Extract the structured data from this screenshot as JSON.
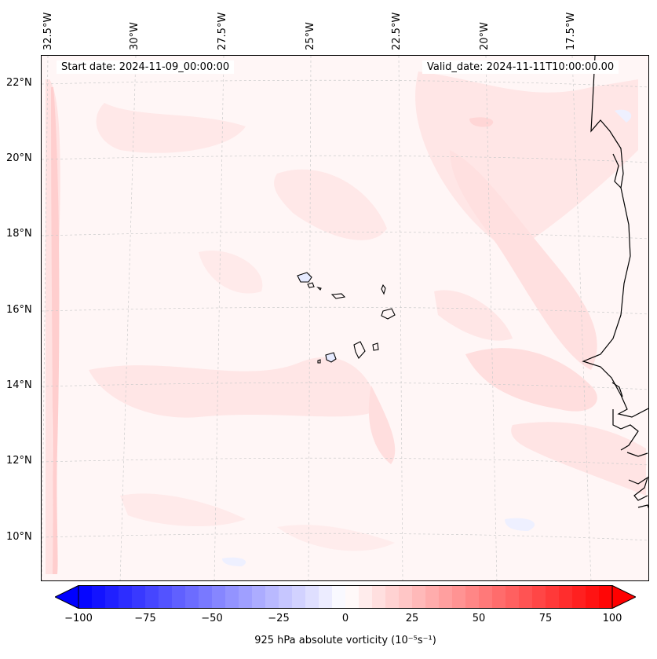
{
  "map": {
    "start_date": "Start date: 2024-11-09_00:00:00",
    "valid_date": "Valid_date: 2024-11-11T10:00:00.00",
    "lon_labels": [
      "32.5°W",
      "30°W",
      "27.5°W",
      "25°W",
      "22.5°W",
      "20°W",
      "17.5°W"
    ],
    "lat_labels": [
      "22°N",
      "20°N",
      "18°N",
      "16°N",
      "14°N",
      "12°N",
      "10°N"
    ],
    "field": "925 hPa absolute vorticity",
    "units": "10⁻⁵s⁻¹"
  },
  "colorbar": {
    "label": "925 hPa absolute vorticity (10⁻⁵s⁻¹)",
    "ticks": [
      "−100",
      "−75",
      "−50",
      "−25",
      "0",
      "25",
      "50",
      "75",
      "100"
    ],
    "min": -100,
    "max": 100,
    "levels": 40,
    "colormap": "bwr",
    "neg_color": "#0000ff",
    "zero_color": "#ffffff",
    "pos_color": "#ff0000"
  },
  "colors": {
    "background_field": "#fff6f6",
    "coastline": "#000000",
    "gridline": "#cccccc",
    "land_blue_fill": "#e6eaff"
  }
}
